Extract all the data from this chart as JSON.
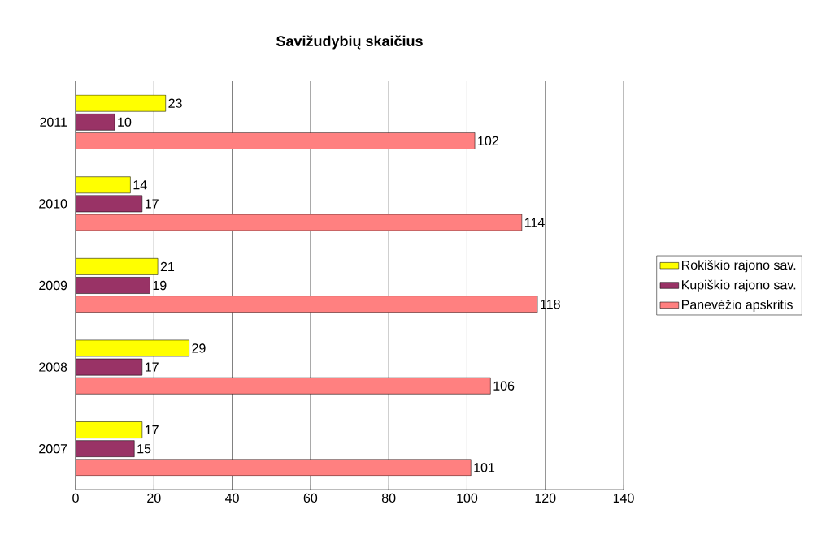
{
  "chart_data": {
    "type": "bar",
    "orientation": "horizontal",
    "title": "Savižudybių skaičius",
    "categories": [
      "2011",
      "2010",
      "2009",
      "2008",
      "2007"
    ],
    "series": [
      {
        "name": "Rokiškio rajono sav.",
        "color": "#ffff00",
        "values": [
          23,
          14,
          21,
          29,
          17
        ]
      },
      {
        "name": "Kupiškio rajono sav.",
        "color": "#993366",
        "values": [
          10,
          17,
          19,
          17,
          15
        ]
      },
      {
        "name": "Panevėžio apskritis",
        "color": "#ff8080",
        "values": [
          102,
          114,
          118,
          106,
          101
        ]
      }
    ],
    "xlim": [
      0,
      140
    ],
    "xticks": [
      0,
      20,
      40,
      60,
      80,
      100,
      120,
      140
    ],
    "grid": "x",
    "legend": "right",
    "data_labels": true
  }
}
